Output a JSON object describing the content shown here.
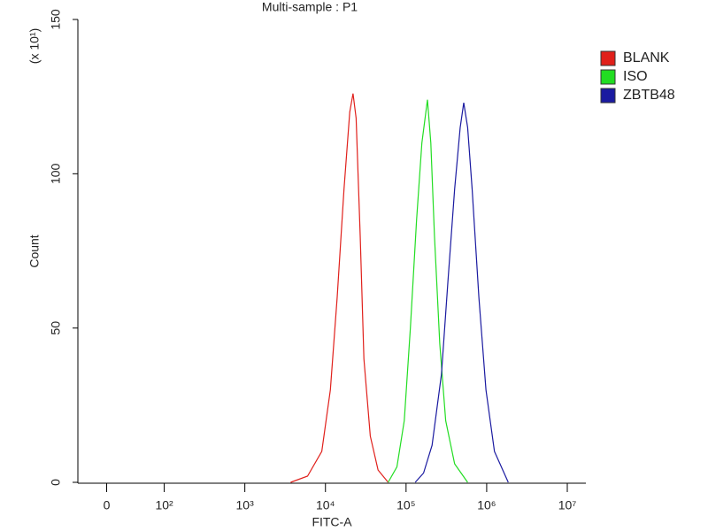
{
  "chart_data": {
    "type": "line",
    "title": "Multi-sample : P1",
    "x_label": "FITC-A",
    "y_label": "Count",
    "y_multiplier": "(x 10¹)",
    "log_x": true,
    "xlim": [
      -50,
      17000000
    ],
    "xticks": [
      0,
      {
        "value": 100,
        "label": "10²"
      },
      {
        "value": 1000,
        "label": "10³"
      },
      {
        "value": 10000,
        "label": "10⁴"
      },
      {
        "value": 100000,
        "label": "10⁵"
      },
      {
        "value": 1000000,
        "label": "10⁶"
      },
      {
        "value": 10000000,
        "label": "10⁷"
      }
    ],
    "ylim": [
      0,
      150
    ],
    "yticks": [
      0,
      50,
      100,
      150
    ],
    "legend": "right",
    "series": [
      {
        "name": "BLANK",
        "color": "#e0201b",
        "x": [
          3700,
          6000,
          9000,
          11500,
          14000,
          17000,
          20000,
          22000,
          24000,
          27000,
          30000,
          36000,
          45000,
          60000
        ],
        "values": [
          0,
          2,
          10,
          30,
          60,
          95,
          120,
          126,
          118,
          80,
          40,
          15,
          4,
          0
        ]
      },
      {
        "name": "ISO",
        "color": "#22dd22",
        "x": [
          60000,
          77000,
          95000,
          113000,
          135000,
          157000,
          184000,
          203000,
          225000,
          262000,
          310000,
          400000,
          580000
        ],
        "values": [
          0,
          5,
          20,
          50,
          85,
          110,
          124,
          110,
          80,
          45,
          20,
          6,
          0
        ]
      },
      {
        "name": "ZBTB48",
        "color": "#1a1aa0",
        "x": [
          130000,
          165000,
          210000,
          275000,
          330000,
          400000,
          470000,
          520000,
          580000,
          660000,
          800000,
          980000,
          1250000,
          1850000
        ],
        "values": [
          0,
          3,
          12,
          35,
          65,
          95,
          115,
          123,
          115,
          95,
          60,
          30,
          10,
          0
        ]
      }
    ]
  }
}
